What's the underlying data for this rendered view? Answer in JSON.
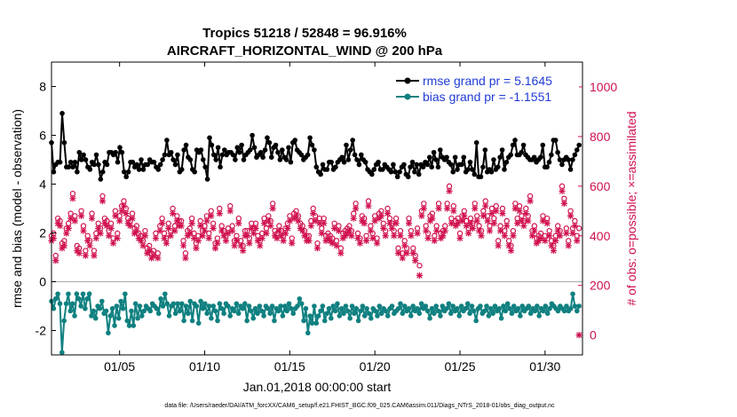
{
  "chart_data": {
    "type": "line",
    "title_line1": "Tropics 51218 / 52848 = 96.916%",
    "title_line2": "AIRCRAFT_HORIZONTAL_WIND @ 200 hPa",
    "xlabel": "Jan.01,2018 00:00:00 start",
    "ylabel_left": "rmse and bias (model - observation)",
    "ylabel_right": "# of obs: o=possible; ×=assimilated",
    "footer": "data file: /Users/raeder/DAI/ATM_forcXX/CAM6_setup/f.e21.FHIST_BGC.f09_025.CAM6assim.011/Diags_NTrS_2018-01/obs_diag_output.nc",
    "x_range": [
      1,
      32.2
    ],
    "y_left_range": [
      -3,
      9
    ],
    "y_right_range": [
      -80,
      1100
    ],
    "x_ticks": [
      {
        "value": 5,
        "label": "01/05"
      },
      {
        "value": 10,
        "label": "01/10"
      },
      {
        "value": 15,
        "label": "01/15"
      },
      {
        "value": 20,
        "label": "01/20"
      },
      {
        "value": 25,
        "label": "01/25"
      },
      {
        "value": 30,
        "label": "01/30"
      }
    ],
    "y_left_ticks": [
      {
        "value": -2,
        "label": "-2"
      },
      {
        "value": 0,
        "label": "0"
      },
      {
        "value": 2,
        "label": "2"
      },
      {
        "value": 4,
        "label": "4"
      },
      {
        "value": 6,
        "label": "6"
      },
      {
        "value": 8,
        "label": "8"
      }
    ],
    "y_right_ticks": [
      {
        "value": 0,
        "label": "0"
      },
      {
        "value": 200,
        "label": "200"
      },
      {
        "value": 400,
        "label": "400"
      },
      {
        "value": 600,
        "label": "600"
      },
      {
        "value": 800,
        "label": "800"
      },
      {
        "value": 1000,
        "label": "1000"
      }
    ],
    "zero_line": 0,
    "colors": {
      "rmse": "#000000",
      "bias": "#108080",
      "obs": "#d0104c",
      "legend_text": "#1f3bd6",
      "zero_line": "#b0b0b0"
    },
    "legend": [
      {
        "name": "rmse grand pr = 5.1645",
        "series": "rmse"
      },
      {
        "name": "bias grand pr = -1.1551",
        "series": "bias"
      }
    ],
    "series": [
      {
        "name": "rmse",
        "axis": "left",
        "values": [
          5.7,
          4.5,
          4.8,
          4.9,
          4.9,
          6.9,
          5.7,
          4.7,
          4.7,
          4.9,
          4.7,
          4.9,
          4.5,
          5.3,
          5.0,
          5.2,
          5.0,
          4.7,
          4.6,
          4.9,
          4.8,
          5.2,
          4.8,
          4.2,
          4.5,
          4.9,
          4.8,
          5.3,
          5.3,
          5.2,
          5.3,
          4.9,
          5.5,
          5.3,
          4.5,
          4.3,
          4.5,
          4.9,
          4.9,
          4.7,
          4.8,
          4.6,
          5.0,
          4.6,
          4.8,
          4.8,
          5.0,
          4.9,
          4.9,
          4.7,
          4.6,
          4.8,
          5.0,
          5.2,
          5.8,
          5.2,
          5.3,
          5.0,
          4.8,
          5.2,
          4.5,
          4.6,
          5.4,
          5.6,
          5.1,
          5.0,
          4.6,
          4.5,
          5.4,
          5.3,
          5.4,
          5.0,
          4.7,
          4.2,
          5.9,
          5.6,
          5.2,
          5.0,
          5.5,
          4.7,
          5.2,
          5.4,
          5.2,
          5.3,
          5.3,
          5.2,
          5.0,
          5.5,
          5.3,
          5.6,
          5.0,
          5.2,
          5.3,
          5.4,
          6.0,
          5.5,
          5.1,
          5.2,
          5.3,
          5.1,
          5.4,
          5.9,
          5.7,
          5.1,
          5.5,
          5.6,
          5.3,
          5.0,
          5.4,
          5.1,
          5.0,
          5.5,
          4.9,
          5.7,
          5.8,
          5.4,
          5.3,
          5.2,
          5.0,
          5.1,
          5.2,
          5.9,
          5.6,
          5.4,
          4.7,
          4.5,
          4.4,
          4.8,
          4.6,
          4.6,
          4.9,
          4.9,
          4.6,
          4.7,
          4.9,
          5.0,
          5.1,
          4.9,
          5.6,
          5.0,
          5.4,
          5.8,
          5.2,
          5.0,
          4.8,
          5.2,
          5.0,
          4.9,
          4.6,
          4.5,
          4.4,
          4.6,
          4.8,
          4.9,
          4.6,
          4.6,
          4.8,
          4.7,
          4.6,
          4.5,
          4.8,
          4.5,
          4.3,
          4.5,
          4.7,
          4.8,
          4.4,
          4.3,
          4.7,
          4.9,
          4.5,
          4.8,
          4.4,
          4.8,
          4.7,
          4.9,
          4.8,
          5.1,
          4.7,
          5.3,
          5.0,
          4.7,
          5.4,
          5.1,
          5.0,
          5.1,
          4.9,
          4.8,
          4.5,
          5.1,
          4.6,
          4.8,
          4.8,
          5.1,
          4.5,
          4.6,
          4.9,
          4.6,
          4.4,
          5.7,
          4.3,
          4.3,
          4.7,
          5.4,
          4.5,
          4.6,
          4.5,
          5.0,
          4.6,
          4.7,
          5.1,
          5.4,
          4.6,
          4.9,
          5.1,
          5.2,
          5.6,
          5.8,
          5.2,
          5.2,
          5.3,
          5.6,
          5.2,
          5.1,
          5.0,
          5.0,
          5.1,
          4.9,
          5.0,
          5.1,
          5.6,
          4.7,
          4.7,
          4.9,
          5.2,
          5.8,
          5.8,
          5.3,
          5.0,
          4.8,
          5.0,
          5.1,
          5.0,
          4.6,
          5.0,
          5.2,
          5.4,
          5.6
        ]
      },
      {
        "name": "bias",
        "axis": "left",
        "values": [
          -0.8,
          -1.1,
          -0.7,
          -0.5,
          -0.9,
          -2.9,
          -1.6,
          -0.9,
          -0.5,
          -1.2,
          -0.9,
          -1.4,
          -0.5,
          -0.7,
          -1.0,
          -0.5,
          -1.1,
          -0.7,
          -0.5,
          -1.4,
          -1.2,
          -1.5,
          -1.0,
          -1.1,
          -0.8,
          -1.3,
          -1.2,
          -2.1,
          -1.4,
          -1.1,
          -1.8,
          -1.0,
          -1.5,
          -0.8,
          -1.1,
          -0.5,
          -1.6,
          -1.8,
          -1.2,
          -1.8,
          -0.9,
          -1.5,
          -1.0,
          -1.4,
          -1.2,
          -1.0,
          -1.1,
          -1.2,
          -0.9,
          -1.0,
          -1.1,
          -1.3,
          -0.7,
          -1.0,
          -0.5,
          -0.9,
          -1.4,
          -1.0,
          -0.9,
          -1.3,
          -0.9,
          -1.2,
          -0.9,
          -1.6,
          -1.0,
          -1.3,
          -0.8,
          -1.6,
          -0.9,
          -1.0,
          -1.7,
          -0.8,
          -1.1,
          -0.9,
          -1.3,
          -1.0,
          -1.5,
          -1.0,
          -1.2,
          -1.6,
          -0.9,
          -1.1,
          -1.3,
          -0.9,
          -1.0,
          -1.4,
          -1.1,
          -1.2,
          -0.9,
          -1.3,
          -1.0,
          -1.1,
          -0.9,
          -1.6,
          -1.0,
          -1.2,
          -1.5,
          -1.1,
          -1.3,
          -1.0,
          -1.2,
          -1.4,
          -1.0,
          -1.1,
          -1.3,
          -1.0,
          -1.6,
          -1.1,
          -1.2,
          -1.0,
          -1.4,
          -1.0,
          -1.2,
          -0.9,
          -1.1,
          -1.3,
          -1.1,
          -1.0,
          -0.7,
          -0.9,
          -1.6,
          -1.1,
          -2.1,
          -1.4,
          -1.7,
          -1.0,
          -1.7,
          -1.4,
          -1.2,
          -1.0,
          -1.6,
          -1.3,
          -1.1,
          -1.5,
          -1.0,
          -1.2,
          -0.9,
          -1.4,
          -1.1,
          -1.3,
          -1.0,
          -1.2,
          -1.5,
          -1.0,
          -1.3,
          -1.1,
          -1.6,
          -1.2,
          -1.0,
          -1.4,
          -1.1,
          -1.3,
          -1.5,
          -1.1,
          -1.2,
          -1.4,
          -1.0,
          -1.3,
          -1.1,
          -1.2,
          -1.4,
          -1.1,
          -1.0,
          -1.3,
          -1.2,
          -1.1,
          -0.9,
          -1.3,
          -1.0,
          -1.2,
          -1.1,
          -1.4,
          -1.0,
          -1.2,
          -1.1,
          -1.3,
          -0.9,
          -1.1,
          -1.0,
          -1.2,
          -1.5,
          -1.1,
          -1.3,
          -1.0,
          -1.2,
          -1.4,
          -1.0,
          -1.2,
          -1.1,
          -0.9,
          -1.3,
          -1.0,
          -1.2,
          -1.1,
          -1.4,
          -1.0,
          -1.2,
          -1.1,
          -0.9,
          -1.3,
          -1.0,
          -1.2,
          -1.6,
          -1.1,
          -1.0,
          -1.3,
          -1.2,
          -1.0,
          -1.4,
          -1.1,
          -1.3,
          -1.0,
          -1.2,
          -1.1,
          -1.5,
          -1.0,
          -1.2,
          -0.9,
          -1.1,
          -1.3,
          -1.0,
          -1.2,
          -1.1,
          -1.4,
          -1.0,
          -1.2,
          -1.1,
          -1.0,
          -1.3,
          -1.1,
          -1.2,
          -1.0,
          -1.4,
          -1.1,
          -1.2,
          -1.0,
          -1.3,
          -1.1,
          -0.9,
          -1.0,
          -1.1,
          -1.2,
          -1.0,
          -1.1,
          -1.2,
          -1.0,
          -1.2,
          -1.1,
          -0.5,
          -1.0,
          -1.2,
          -1.0
        ]
      },
      {
        "name": "obs_possible",
        "axis": "right",
        "values": [
          400,
          410,
          320,
          470,
          460,
          370,
          380,
          430,
          450,
          490,
          570,
          480,
          360,
          350,
          500,
          440,
          340,
          400,
          380,
          490,
          340,
          410,
          450,
          430,
          560,
          470,
          460,
          420,
          450,
          390,
          500,
          410,
          480,
          520,
          540,
          510,
          470,
          460,
          490,
          430,
          440,
          410,
          400,
          380,
          420,
          350,
          360,
          330,
          340,
          410,
          330,
          440,
          470,
          410,
          390,
          450,
          420,
          510,
          440,
          480,
          460,
          460,
          380,
          330,
          420,
          430,
          470,
          410,
          370,
          400,
          460,
          420,
          440,
          480,
          410,
          500,
          450,
          370,
          390,
          510,
          440,
          420,
          400,
          430,
          520,
          440,
          380,
          400,
          470,
          380,
          360,
          420,
          420,
          390,
          450,
          430,
          450,
          400,
          380,
          410,
          470,
          430,
          480,
          460,
          530,
          420,
          410,
          440,
          420,
          400,
          430,
          450,
          480,
          390,
          490,
          500,
          480,
          450,
          440,
          420,
          400,
          400,
          460,
          510,
          480,
          370,
          470,
          430,
          470,
          400,
          410,
          400,
          390,
          450,
          380,
          440,
          350,
          410,
          420,
          430,
          440,
          420,
          490,
          530,
          410,
          390,
          480,
          470,
          400,
          540,
          440,
          410,
          480,
          390,
          490,
          500,
          450,
          420,
          510,
          470,
          450,
          420,
          470,
          350,
          420,
          330,
          380,
          350,
          470,
          420,
          350,
          320,
          430,
          280,
          500,
          530,
          440,
          410,
          480,
          490,
          400,
          440,
          530,
          410,
          420,
          440,
          530,
          600,
          470,
          520,
          460,
          470,
          410,
          480,
          500,
          460,
          430,
          470,
          450,
          530,
          480,
          440,
          420,
          500,
          540,
          480,
          440,
          510,
          470,
          520,
          380,
          440,
          510,
          420,
          460,
          380,
          360,
          420,
          530,
          470,
          520,
          480,
          460,
          510,
          480,
          560,
          420,
          440,
          390,
          400,
          410,
          480,
          400,
          470,
          420,
          380,
          360,
          400,
          440,
          420,
          600,
          550,
          430,
          380,
          500,
          430,
          460,
          400,
          430
        ]
      },
      {
        "name": "obs_assimilated",
        "axis": "right",
        "values": [
          380,
          390,
          300,
          450,
          440,
          350,
          360,
          410,
          430,
          470,
          550,
          460,
          340,
          330,
          480,
          420,
          320,
          380,
          360,
          470,
          320,
          390,
          430,
          410,
          540,
          450,
          440,
          400,
          430,
          370,
          480,
          390,
          460,
          500,
          520,
          490,
          450,
          440,
          470,
          410,
          420,
          390,
          380,
          360,
          400,
          330,
          340,
          310,
          320,
          390,
          310,
          420,
          450,
          390,
          370,
          430,
          400,
          490,
          420,
          460,
          440,
          440,
          360,
          310,
          400,
          410,
          450,
          390,
          350,
          380,
          440,
          400,
          420,
          460,
          390,
          480,
          430,
          350,
          370,
          490,
          420,
          400,
          380,
          410,
          500,
          420,
          360,
          380,
          450,
          360,
          340,
          400,
          400,
          370,
          430,
          410,
          430,
          380,
          360,
          390,
          450,
          410,
          460,
          440,
          510,
          400,
          390,
          420,
          400,
          380,
          410,
          430,
          460,
          370,
          470,
          480,
          460,
          430,
          420,
          400,
          380,
          380,
          440,
          490,
          460,
          350,
          450,
          410,
          450,
          380,
          390,
          380,
          370,
          430,
          360,
          420,
          330,
          390,
          400,
          410,
          420,
          400,
          470,
          510,
          390,
          370,
          460,
          450,
          380,
          520,
          420,
          390,
          460,
          370,
          470,
          480,
          430,
          400,
          490,
          450,
          430,
          400,
          450,
          330,
          400,
          310,
          360,
          330,
          450,
          400,
          330,
          300,
          410,
          240,
          480,
          510,
          420,
          390,
          460,
          470,
          380,
          420,
          510,
          390,
          400,
          420,
          510,
          580,
          450,
          500,
          440,
          450,
          390,
          460,
          480,
          440,
          410,
          450,
          430,
          510,
          460,
          420,
          400,
          480,
          520,
          460,
          420,
          490,
          450,
          500,
          360,
          420,
          490,
          400,
          440,
          360,
          340,
          400,
          510,
          450,
          500,
          460,
          440,
          490,
          460,
          540,
          400,
          420,
          370,
          380,
          390,
          460,
          380,
          450,
          400,
          360,
          340,
          380,
          420,
          400,
          580,
          530,
          410,
          360,
          480,
          410,
          440,
          380,
          0
        ]
      }
    ]
  }
}
